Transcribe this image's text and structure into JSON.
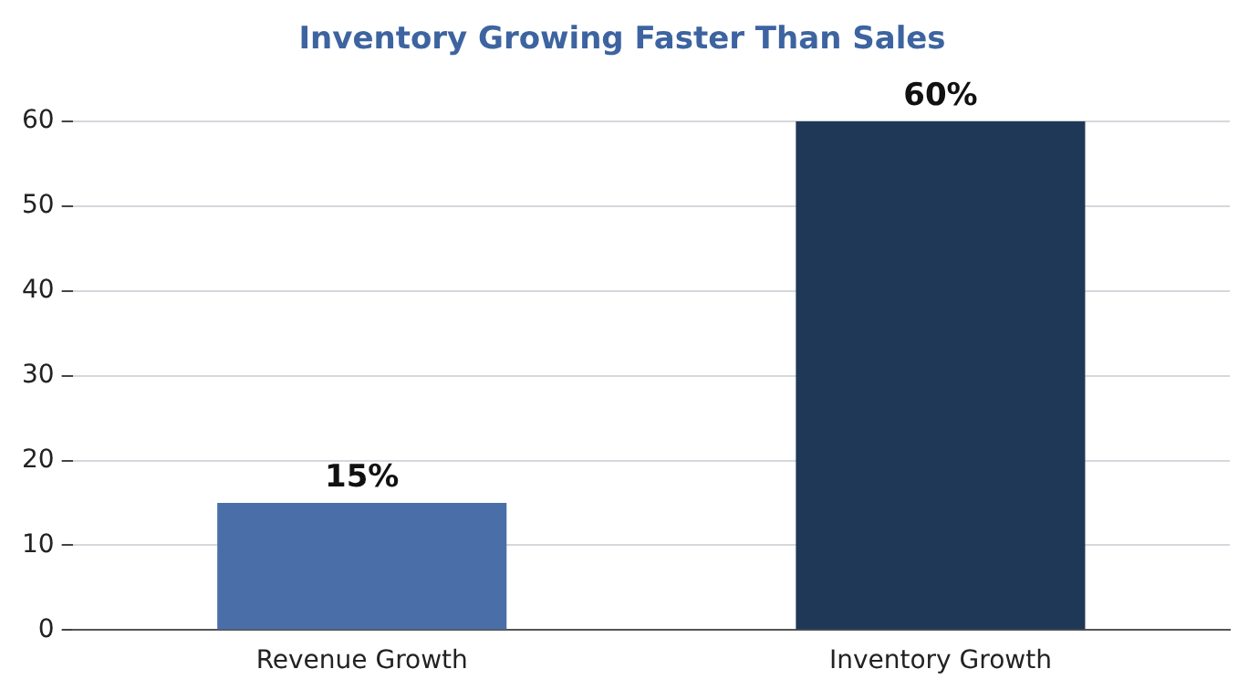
{
  "chart_data": {
    "type": "bar",
    "title": "Inventory Growing Faster Than Sales",
    "categories": [
      "Revenue Growth",
      "Inventory Growth"
    ],
    "values": [
      15,
      60
    ],
    "colors": [
      "#4a6fa8",
      "#1f3857"
    ],
    "value_labels": [
      "15%",
      "60%"
    ],
    "ylim": [
      0,
      60
    ],
    "yticks": [
      0,
      10,
      20,
      30,
      40,
      50,
      60
    ],
    "grid": "y",
    "legend": false
  }
}
